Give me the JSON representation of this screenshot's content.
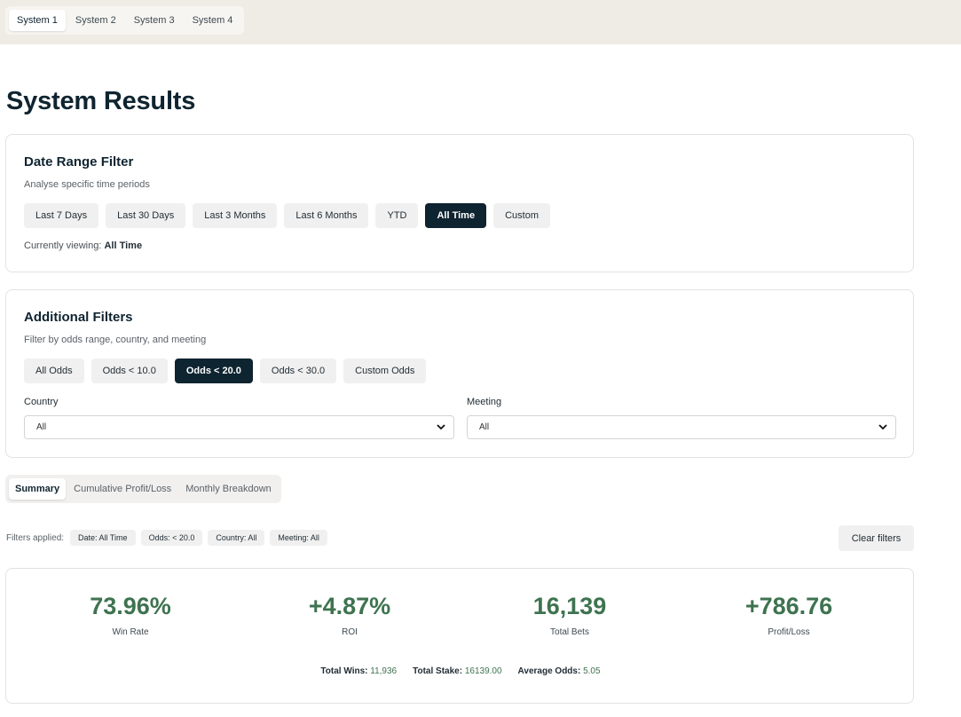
{
  "top_tabs": [
    {
      "label": "System 1",
      "active": true
    },
    {
      "label": "System 2",
      "active": false
    },
    {
      "label": "System 3",
      "active": false
    },
    {
      "label": "System 4",
      "active": false
    }
  ],
  "page_title": "System Results",
  "date_filter": {
    "title": "Date Range Filter",
    "subtitle": "Analyse specific time periods",
    "buttons": [
      "Last 7 Days",
      "Last 30 Days",
      "Last 3 Months",
      "Last 6 Months",
      "YTD",
      "All Time",
      "Custom"
    ],
    "active": "All Time",
    "viewing_prefix": "Currently viewing:",
    "viewing_value": "All Time"
  },
  "additional_filters": {
    "title": "Additional Filters",
    "subtitle": "Filter by odds range, country, and meeting",
    "odds_buttons": [
      "All Odds",
      "Odds < 10.0",
      "Odds < 20.0",
      "Odds < 30.0",
      "Custom Odds"
    ],
    "active": "Odds < 20.0",
    "country_label": "Country",
    "country_value": "All",
    "meeting_label": "Meeting",
    "meeting_value": "All"
  },
  "view_tabs": [
    {
      "label": "Summary",
      "active": true
    },
    {
      "label": "Cumulative Profit/Loss",
      "active": false
    },
    {
      "label": "Monthly Breakdown",
      "active": false
    }
  ],
  "filters_applied": {
    "label": "Filters applied:",
    "chips": [
      "Date: All Time",
      "Odds: < 20.0",
      "Country: All",
      "Meeting: All"
    ],
    "clear_label": "Clear filters"
  },
  "summary": {
    "stats": [
      {
        "value": "73.96%",
        "label": "Win Rate"
      },
      {
        "value": "+4.87%",
        "label": "ROI"
      },
      {
        "value": "16,139",
        "label": "Total Bets"
      },
      {
        "value": "+786.76",
        "label": "Profit/Loss"
      }
    ],
    "totals": [
      {
        "label": "Total Wins:",
        "value": "11,936"
      },
      {
        "label": "Total Stake:",
        "value": "16139.00"
      },
      {
        "label": "Average Odds:",
        "value": "5.05"
      }
    ],
    "accent_color": "#3e7350"
  }
}
